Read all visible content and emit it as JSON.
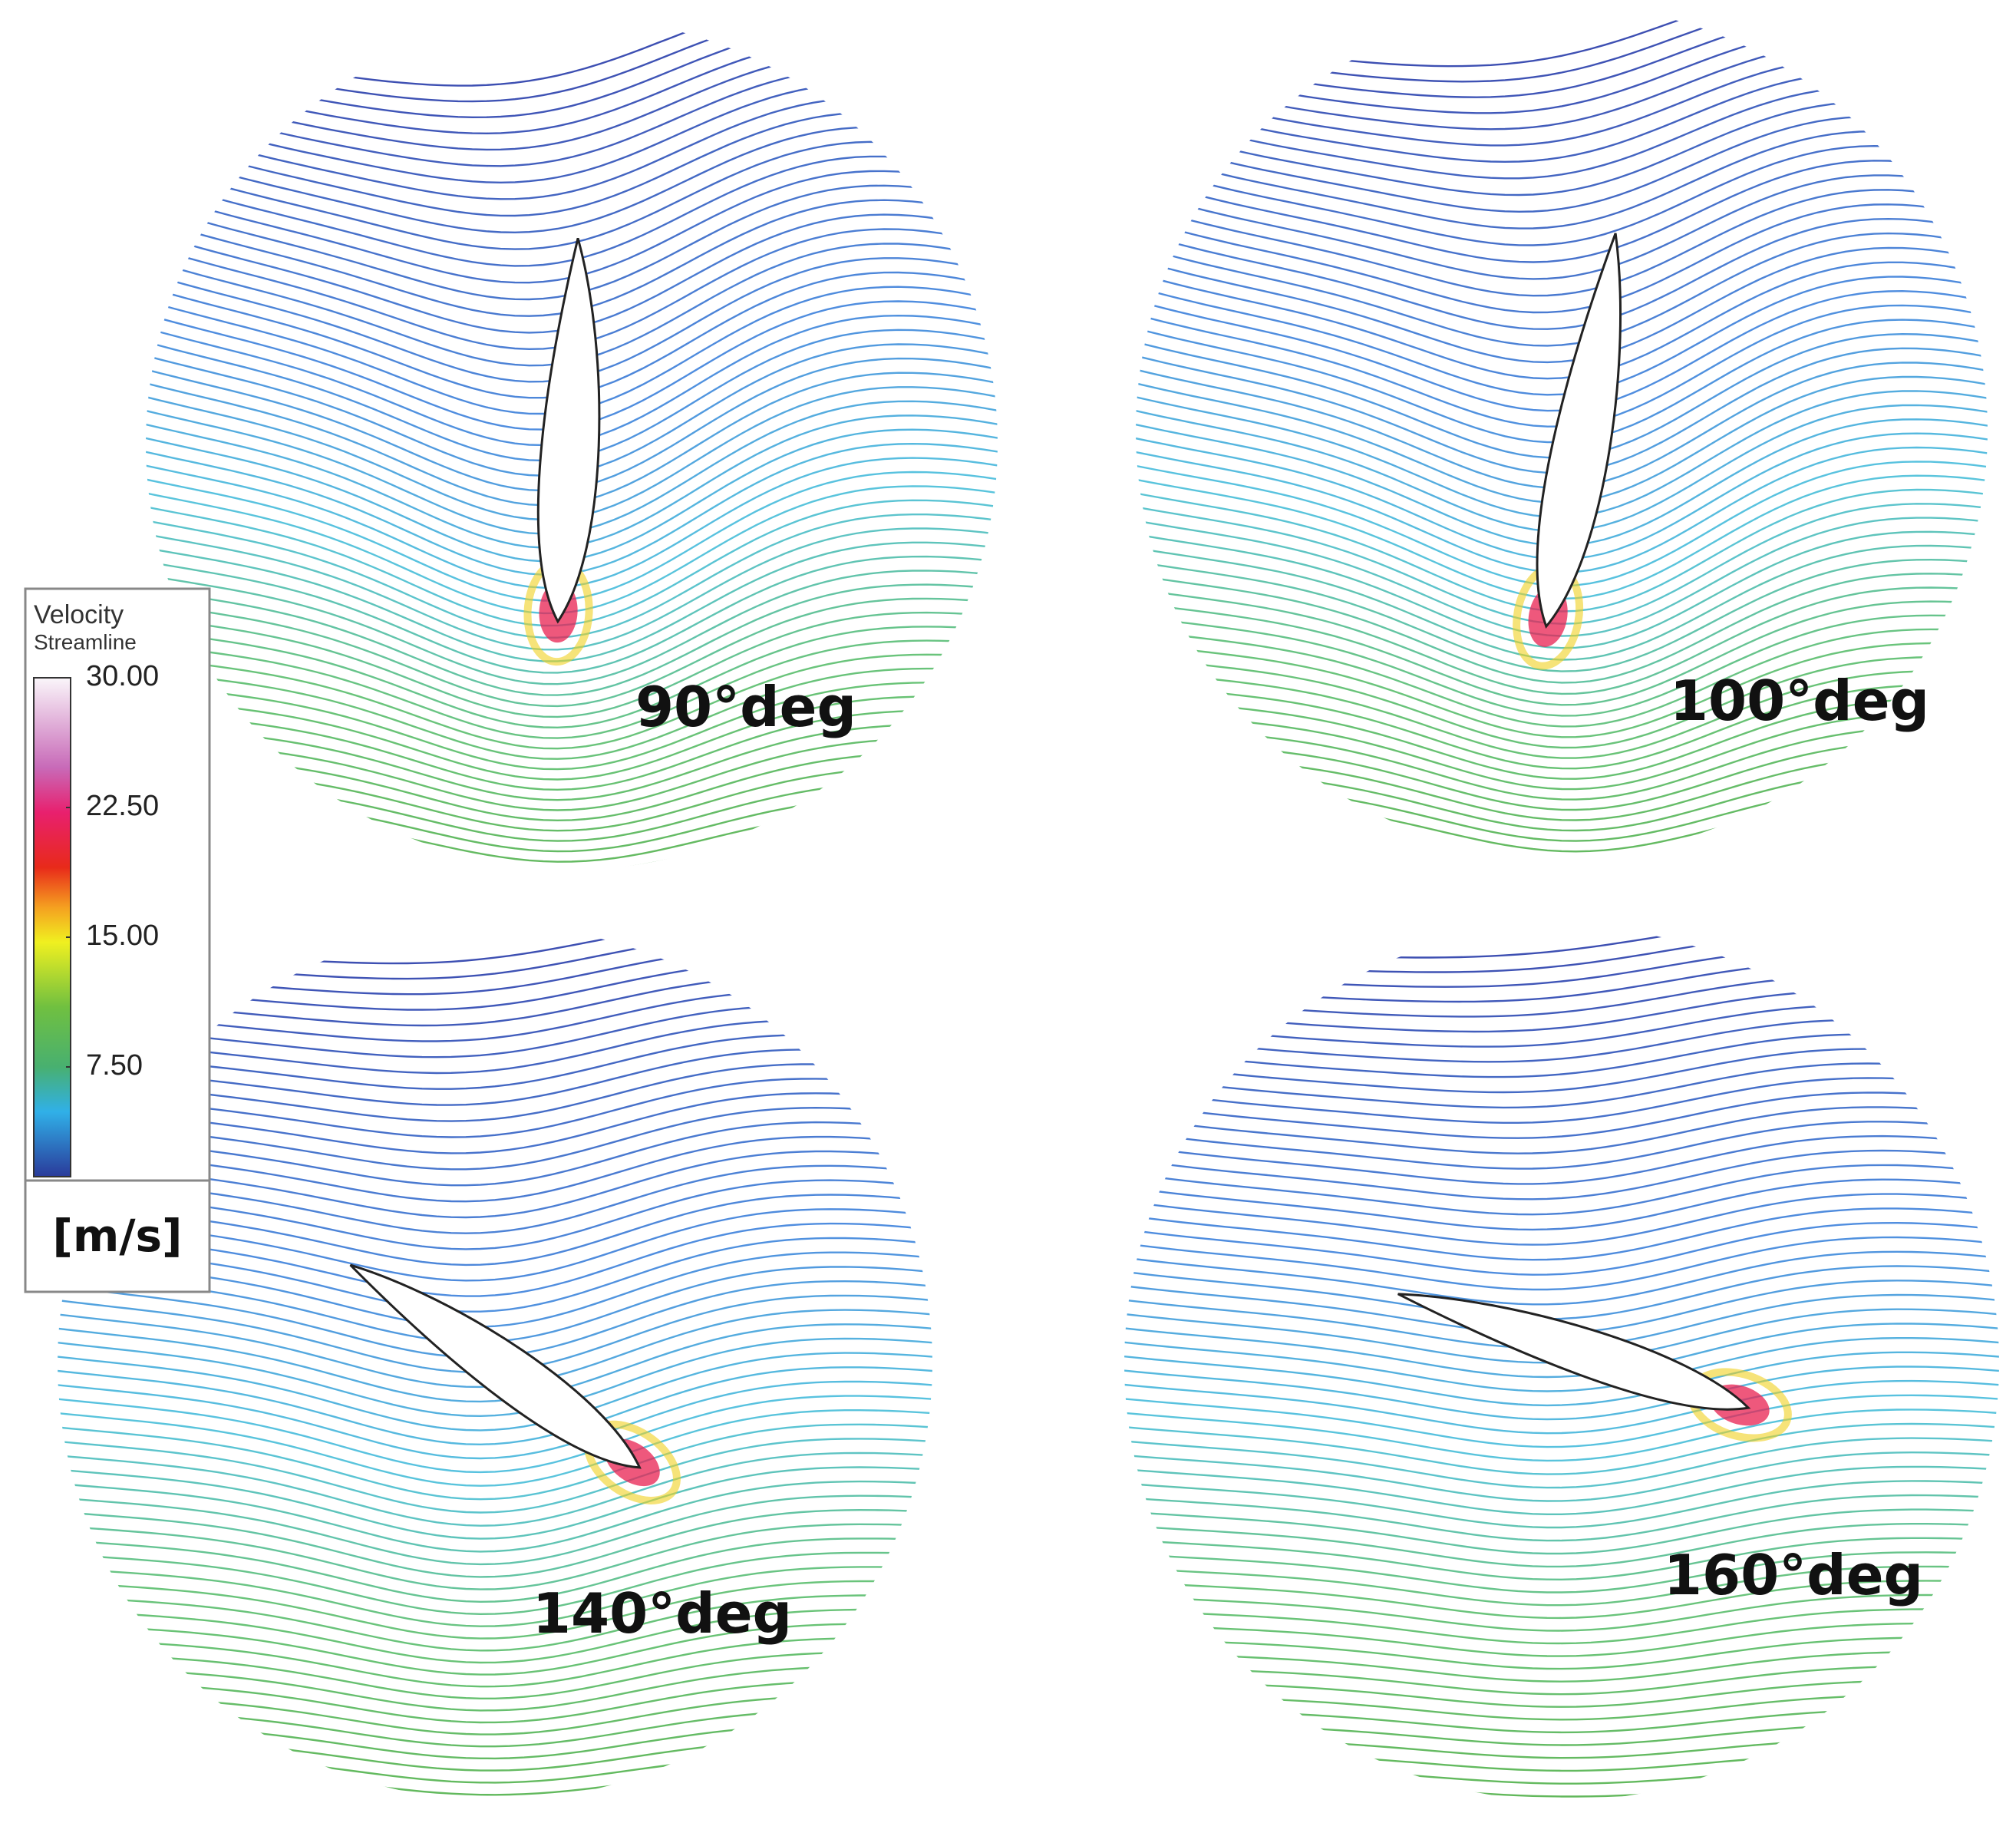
{
  "panels": [
    {
      "label": "90°deg"
    },
    {
      "label": "100°deg"
    },
    {
      "label": "140°deg"
    },
    {
      "label": "160°deg"
    }
  ],
  "legend": {
    "title": [
      "Velocity",
      "Streamline"
    ],
    "ticks": [
      {
        "value": 30,
        "label": "30.00"
      },
      {
        "value": 22.5,
        "label": "22.50"
      },
      {
        "value": 15,
        "label": "15.00"
      },
      {
        "value": 7.5,
        "label": "7.50"
      }
    ],
    "unit": "[m/s]"
  }
}
